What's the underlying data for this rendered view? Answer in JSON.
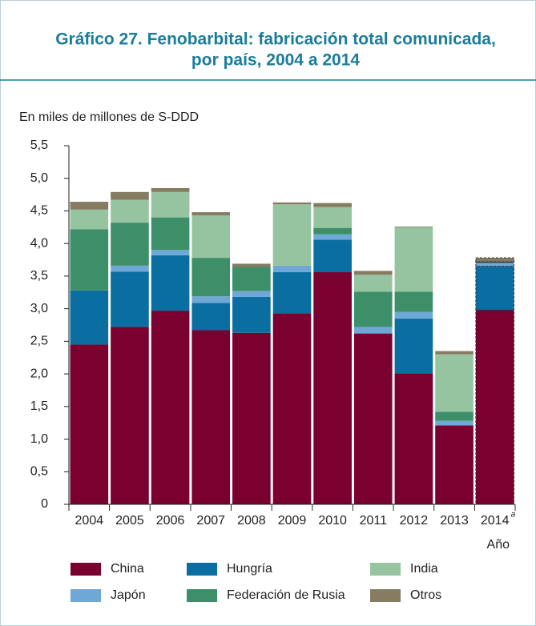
{
  "chart_data": {
    "type": "stacked_bar",
    "title": [
      "Gráfico 27.   Fenobarbital: fabricación total comunicada,",
      "por país, 2004 a 2014"
    ],
    "y_label": "En miles de millones de S-DDD",
    "x_label": "Año",
    "footnote_marker": "a",
    "categories": [
      "2004",
      "2005",
      "2006",
      "2007",
      "2008",
      "2009",
      "2010",
      "2011",
      "2012",
      "2013",
      "2014"
    ],
    "projected": [
      false,
      false,
      false,
      false,
      false,
      false,
      false,
      false,
      false,
      false,
      true
    ],
    "series": [
      {
        "name": "China",
        "color": "#7a0030",
        "values": [
          2.45,
          2.72,
          2.97,
          2.67,
          2.63,
          2.93,
          3.56,
          2.62,
          2.01,
          1.21,
          2.98
        ]
      },
      {
        "name": "Hungría",
        "color": "#0a6fa0",
        "values": [
          0.83,
          0.85,
          0.85,
          0.42,
          0.55,
          0.63,
          0.5,
          0,
          0.84,
          0,
          0.67
        ]
      },
      {
        "name": "Japón",
        "color": "#6fa8d6",
        "values": [
          0,
          0.09,
          0.08,
          0.1,
          0.09,
          0.1,
          0.08,
          0.1,
          0.1,
          0.07,
          0.06
        ]
      },
      {
        "name": "Federación de Rusia",
        "color": "#3d8f6a",
        "values": [
          0.94,
          0.66,
          0.5,
          0.59,
          0.37,
          0,
          0.1,
          0.54,
          0.31,
          0.14,
          0.01
        ]
      },
      {
        "name": "India",
        "color": "#96c4a0",
        "values": [
          0.3,
          0.35,
          0.39,
          0.65,
          0,
          0.94,
          0.32,
          0.26,
          0.99,
          0.88,
          0
        ]
      },
      {
        "name": "Otros",
        "color": "#857c62",
        "values": [
          0.12,
          0.12,
          0.06,
          0.05,
          0.05,
          0.03,
          0.06,
          0.06,
          0.01,
          0.05,
          0.06
        ]
      }
    ],
    "ylim": [
      0,
      5.5
    ],
    "yticks": [
      0,
      {
        "value": 0.5,
        "label": "0,5"
      },
      {
        "value": 1,
        "label": "1,0"
      },
      {
        "value": 1.5,
        "label": "1,5"
      },
      {
        "value": 2,
        "label": "2,0"
      },
      {
        "value": 2.5,
        "label": "2,5"
      },
      {
        "value": 3,
        "label": "3,0"
      },
      {
        "value": 3.5,
        "label": "3,5"
      },
      {
        "value": 4,
        "label": "4,0"
      },
      {
        "value": 4.5,
        "label": "4,5"
      },
      {
        "value": 5,
        "label": "5,0"
      },
      {
        "value": 5.5,
        "label": "5,5"
      }
    ]
  }
}
